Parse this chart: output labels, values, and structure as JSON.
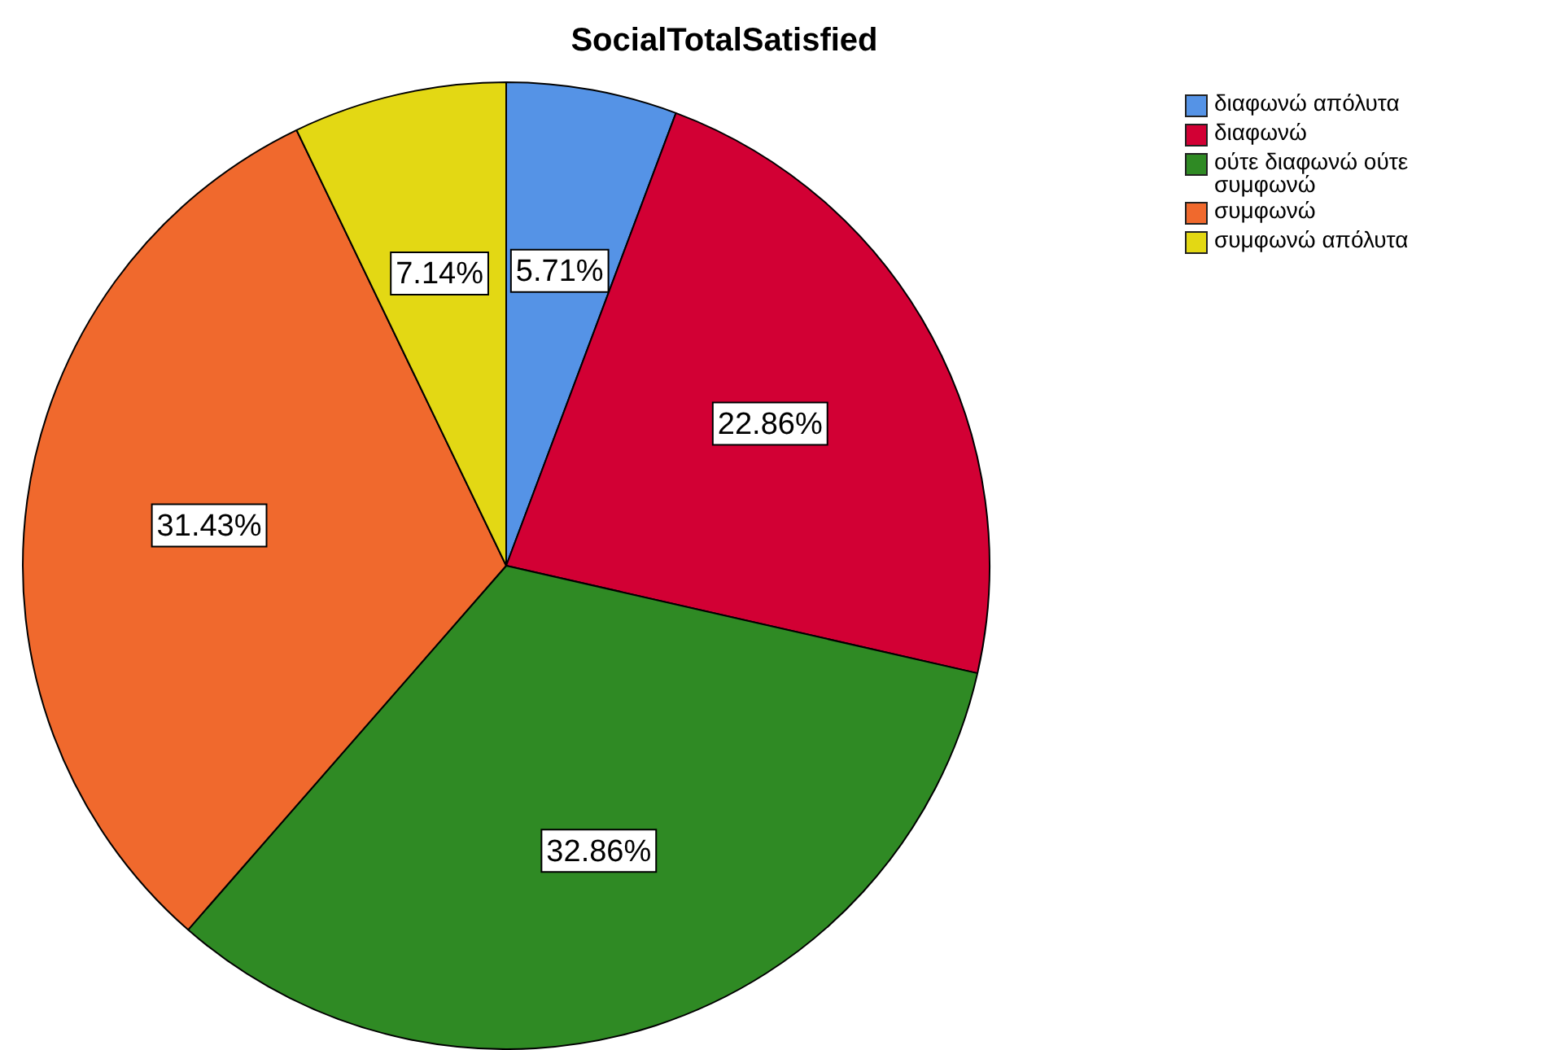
{
  "chart_data": {
    "type": "pie",
    "title": "SocialTotalSatisfied",
    "categories": [
      "διαφωνώ απόλυτα",
      "διαφωνώ",
      "ούτε διαφωνώ ούτε συμφωνώ",
      "συμφωνώ",
      "συμφωνώ απόλυτα"
    ],
    "values": [
      5.71,
      22.86,
      32.86,
      31.43,
      7.14
    ],
    "colors": [
      "#5593e6",
      "#d20034",
      "#2f8a24",
      "#f0692d",
      "#e3d814"
    ],
    "value_labels": [
      "5.71%",
      "22.86%",
      "32.86%",
      "31.43%",
      "7.14%"
    ],
    "legend": "top right"
  }
}
